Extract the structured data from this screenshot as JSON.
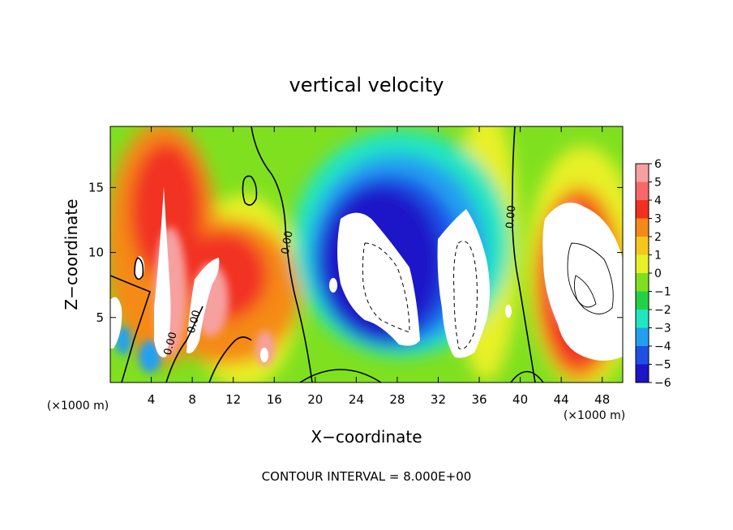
{
  "chart_data": {
    "type": "heatmap",
    "title": "vertical velocity",
    "xlabel": "X−coordinate",
    "ylabel": "Z−coordinate",
    "x_unit_label": "(×1000 m)",
    "footer": "CONTOUR INTERVAL = 8.000E+00",
    "xlim": [
      0,
      50
    ],
    "ylim": [
      0,
      19.7
    ],
    "x_ticks": [
      4,
      8,
      12,
      16,
      20,
      24,
      28,
      32,
      36,
      40,
      44,
      48
    ],
    "x_tick_labels": [
      "4",
      "8",
      "12",
      "16",
      "20",
      "24",
      "28",
      "32",
      "36",
      "40",
      "44",
      "48"
    ],
    "y_ticks": [
      5,
      10,
      15
    ],
    "y_tick_labels": [
      "5",
      "10",
      "15"
    ],
    "colorbar": {
      "levels": [
        6,
        5,
        4,
        3,
        2,
        1,
        0,
        -1,
        -2,
        -3,
        -4,
        -5,
        -6
      ],
      "labels": [
        "6",
        "5",
        "4",
        "3",
        "2",
        "1",
        "0",
        "−1",
        "−2",
        "−3",
        "−4",
        "−5",
        "−6"
      ],
      "colors": [
        "#f7a0a0",
        "#f76868",
        "#f23020",
        "#f58a18",
        "#f5c81e",
        "#e8f028",
        "#7fe020",
        "#22d246",
        "#22e6c0",
        "#22a0f0",
        "#1e50e6",
        "#1e14c8",
        "#7818b4"
      ]
    },
    "contour_labels": [
      "0.00",
      "0.00",
      "0.00",
      "0.00"
    ],
    "features": [
      {
        "kind": "updraft",
        "x": 5,
        "z": 13,
        "amplitude": 6
      },
      {
        "kind": "updraft",
        "x": 10,
        "z": 9,
        "amplitude": 5.5
      },
      {
        "kind": "updraft",
        "x": 15,
        "z": 7,
        "amplitude": 4
      },
      {
        "kind": "updraft",
        "x": 45,
        "z": 10,
        "amplitude": 6.5
      },
      {
        "kind": "downdraft",
        "x": 27,
        "z": 10,
        "amplitude": -7.5
      },
      {
        "kind": "downdraft",
        "x": 35,
        "z": 9,
        "amplitude": -7.5
      }
    ]
  }
}
